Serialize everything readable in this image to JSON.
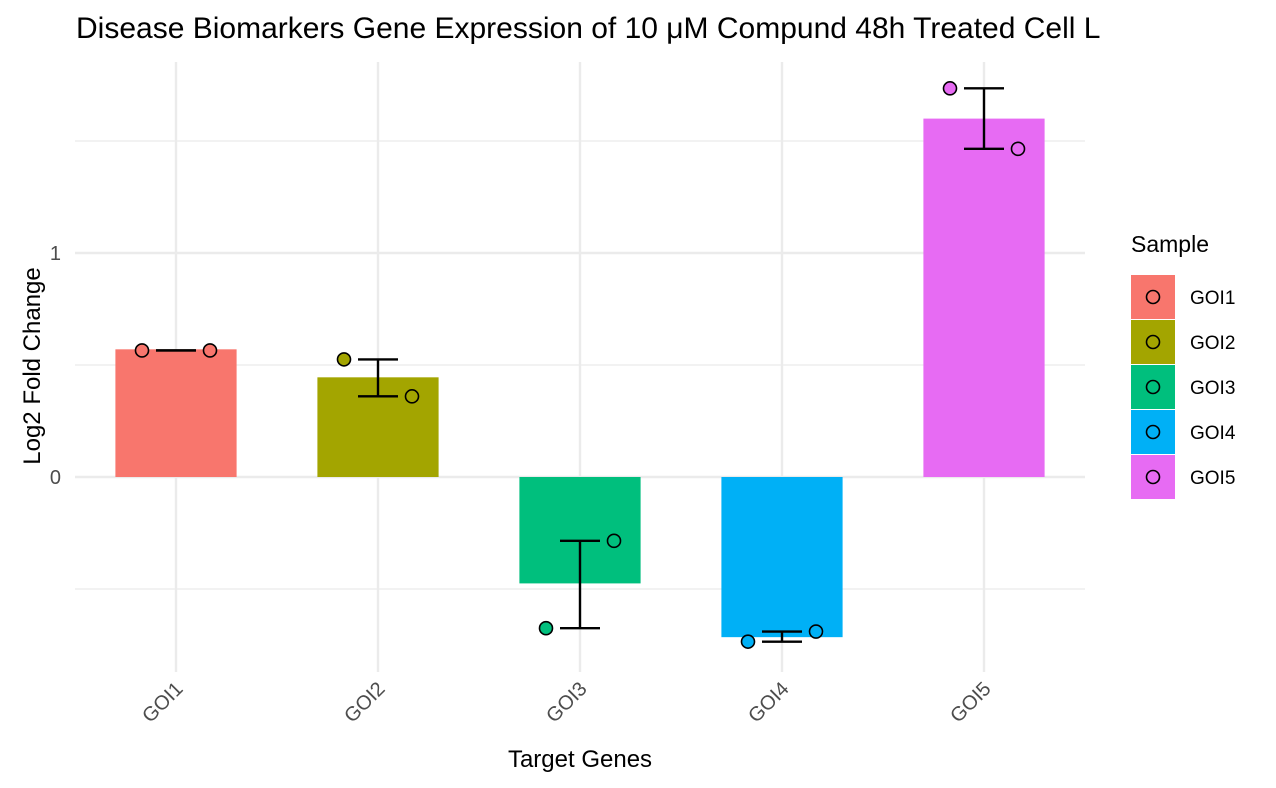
{
  "chart_data": {
    "type": "bar",
    "title": "Disease Biomarkers Gene Expression of 10 μM Compund 48h Treated Cell L",
    "xlabel": "Target Genes",
    "ylabel": "Log2 Fold Change",
    "ylim": [
      -0.87,
      1.85
    ],
    "yticks": [
      0,
      1
    ],
    "categories": [
      "GOI1",
      "GOI2",
      "GOI3",
      "GOI4",
      "GOI5"
    ],
    "values": [
      0.57,
      0.445,
      -0.475,
      -0.715,
      1.6
    ],
    "error_low": [
      0.565,
      0.36,
      -0.675,
      -0.735,
      1.465
    ],
    "error_high": [
      0.565,
      0.525,
      -0.285,
      -0.69,
      1.735
    ],
    "points": [
      [
        0.565,
        0.565
      ],
      [
        0.525,
        0.36
      ],
      [
        -0.675,
        -0.285
      ],
      [
        -0.735,
        -0.69
      ],
      [
        1.735,
        1.465
      ]
    ],
    "colors": [
      "#F8766D",
      "#A3A500",
      "#00BF7D",
      "#00B0F6",
      "#E76BF3"
    ],
    "legend": {
      "title": "Sample",
      "position": "right",
      "entries": [
        "GOI1",
        "GOI2",
        "GOI3",
        "GOI4",
        "GOI5"
      ]
    },
    "grid": true
  }
}
